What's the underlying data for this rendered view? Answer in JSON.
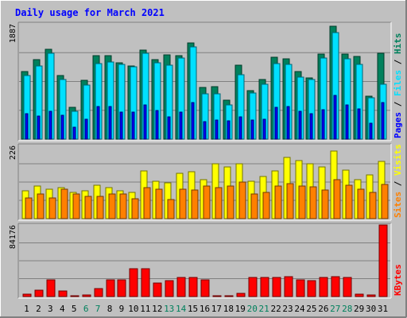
{
  "chart_data": {
    "type": "bar",
    "title": "Daily usage for March 2021",
    "categories": [
      "1",
      "2",
      "3",
      "4",
      "5",
      "6",
      "7",
      "8",
      "9",
      "10",
      "11",
      "12",
      "13",
      "14",
      "15",
      "16",
      "17",
      "18",
      "19",
      "20",
      "21",
      "22",
      "23",
      "24",
      "25",
      "26",
      "27",
      "28",
      "29",
      "30",
      "31"
    ],
    "weekend_days": [
      "6",
      "7",
      "13",
      "14",
      "20",
      "21",
      "27",
      "28"
    ],
    "panels": [
      {
        "id": "hits",
        "max_label": "1887",
        "ymax": 1887,
        "series": [
          {
            "name": "Hits",
            "color": "#00805c",
            "values": [
              1100,
              1300,
              1470,
              1040,
              520,
              960,
              1370,
              1360,
              1250,
              1200,
              1460,
              1300,
              1380,
              1370,
              1580,
              850,
              860,
              640,
              1210,
              800,
              980,
              1340,
              1310,
              1100,
              1000,
              1390,
              1850,
              1390,
              1350,
              700,
              1400
            ]
          },
          {
            "name": "Files",
            "color": "#00e0ff",
            "values": [
              1040,
              1200,
              1400,
              980,
              450,
              890,
              1240,
              1260,
              1220,
              1190,
              1400,
              1250,
              1210,
              1330,
              1510,
              740,
              740,
              560,
              1060,
              760,
              900,
              1240,
              1220,
              1020,
              980,
              1330,
              1750,
              1320,
              1220,
              680,
              900
            ]
          },
          {
            "name": "Pages",
            "color": "#0000ff",
            "values": [
              420,
              380,
              450,
              390,
              200,
              330,
              540,
              530,
              440,
              440,
              560,
              470,
              360,
              440,
              600,
              290,
              310,
              300,
              370,
              310,
              330,
              520,
              540,
              460,
              420,
              480,
              720,
              560,
              500,
              260,
              600
            ]
          }
        ],
        "legend": [
          "Pages",
          "Files",
          "Hits"
        ]
      },
      {
        "id": "visits",
        "max_label": "226",
        "ymax": 226,
        "series": [
          {
            "name": "Visits",
            "color": "#ffff00",
            "values": [
              85,
              100,
              92,
              95,
              82,
              85,
              102,
              97,
              85,
              80,
              147,
              115,
              110,
              140,
              145,
              120,
              170,
              160,
              170,
              115,
              130,
              148,
              190,
              180,
              170,
              160,
              210,
              150,
              120,
              135,
              178
            ]
          },
          {
            "name": "Sites",
            "color": "#ff8000",
            "values": [
              65,
              75,
              63,
              90,
              75,
              70,
              70,
              75,
              77,
              62,
              95,
              92,
              58,
              90,
              88,
              100,
              95,
              100,
              113,
              75,
              80,
              100,
              107,
              100,
              98,
              88,
              120,
              103,
              90,
              80,
              105
            ]
          }
        ],
        "legend": [
          "Sites",
          "Visits"
        ]
      },
      {
        "id": "kbytes",
        "max_label": "84176",
        "ymax": 84176,
        "series": [
          {
            "name": "KBytes",
            "color": "#ff0000",
            "values": [
              3000,
              7500,
              19500,
              6500,
              1000,
              2000,
              9500,
              19500,
              19500,
              33000,
              32500,
              16000,
              18500,
              22500,
              22500,
              19500,
              1000,
              1000,
              4000,
              22500,
              22500,
              22500,
              23500,
              19500,
              18500,
              22500,
              23500,
              22500,
              3000,
              1500,
              84176
            ]
          }
        ],
        "legend": [
          "KBytes"
        ]
      }
    ],
    "colors": {
      "background": "#c0c0c0",
      "title": "#0000ff",
      "grid": "#808080",
      "label_weekday": "#000000",
      "label_weekend": "#00805c"
    }
  }
}
